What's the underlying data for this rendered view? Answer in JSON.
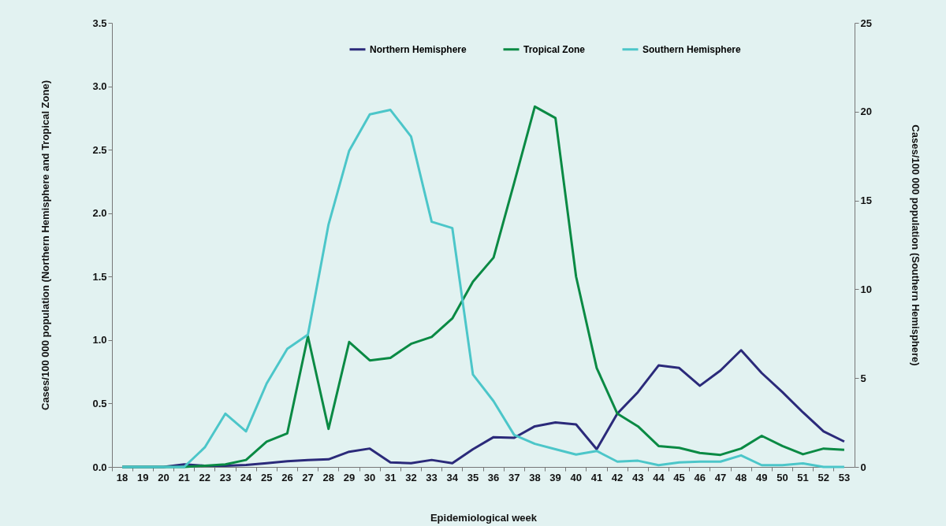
{
  "chart_data": {
    "type": "line",
    "xlabel": "Epidemiological week",
    "ylabel": "Cases/100 000 population (Northern Hemisphere and Tropical Zone)",
    "y2label": "Cases/100 000 population (Southern Hemisphere)",
    "categories": [
      "18",
      "19",
      "20",
      "21",
      "22",
      "23",
      "24",
      "25",
      "26",
      "27",
      "28",
      "29",
      "30",
      "31",
      "32",
      "33",
      "34",
      "35",
      "36",
      "37",
      "38",
      "39",
      "40",
      "41",
      "42",
      "43",
      "44",
      "45",
      "46",
      "47",
      "48",
      "49",
      "50",
      "51",
      "52",
      "53"
    ],
    "series": [
      {
        "name": "Northern Hemisphere",
        "color": "#2b2a7a",
        "values": [
          0,
          0,
          0,
          0.02,
          0.01,
          0.01,
          0.015,
          0.03,
          0.045,
          0.055,
          0.06,
          0.12,
          0.145,
          0.035,
          0.03,
          0.055,
          0.03,
          0.14,
          0.235,
          0.23,
          0.32,
          0.35,
          0.335,
          0.14,
          0.42,
          0.59,
          0.8,
          0.78,
          0.64,
          0.76,
          0.92,
          0.74,
          0.59,
          0.43,
          0.28,
          0.2
        ]
      },
      {
        "name": "Tropical Zone",
        "color": "#0a8a44",
        "values": [
          0,
          0,
          0,
          0,
          0.01,
          0.02,
          0.055,
          0.2,
          0.265,
          1.03,
          0.3,
          0.985,
          0.84,
          0.86,
          0.97,
          1.025,
          1.17,
          1.46,
          1.65,
          2.24,
          2.84,
          2.75,
          1.5,
          0.78,
          0.42,
          0.32,
          0.165,
          0.15,
          0.11,
          0.095,
          0.145,
          0.245,
          0.165,
          0.1,
          0.145,
          0.135
        ]
      },
      {
        "name": "Southern Hemisphere",
        "color": "#4cc6c9",
        "axis": "y2",
        "values": [
          0,
          0,
          0,
          0,
          1.1,
          3.0,
          2.0,
          4.7,
          6.65,
          7.45,
          13.65,
          17.8,
          19.85,
          20.1,
          18.6,
          13.8,
          13.45,
          5.2,
          3.7,
          1.8,
          1.3,
          1.0,
          0.7,
          0.9,
          0.3,
          0.35,
          0.1,
          0.25,
          0.3,
          0.3,
          0.65,
          0.1,
          0.1,
          0.2,
          0,
          0
        ]
      }
    ],
    "ylim": [
      0,
      3.5
    ],
    "yticks": [
      {
        "value": 0,
        "label": "0.0"
      },
      {
        "value": 0.5,
        "label": "0.5"
      },
      {
        "value": 1,
        "label": "1.0"
      },
      {
        "value": 1.5,
        "label": "1.5"
      },
      {
        "value": 2,
        "label": "2.0"
      },
      {
        "value": 2.5,
        "label": "2.5"
      },
      {
        "value": 3,
        "label": "3.0"
      },
      {
        "value": 3.5,
        "label": "3.5"
      }
    ],
    "y2lim": [
      0,
      25
    ],
    "y2ticks": [
      0,
      5,
      10,
      15,
      20,
      25
    ],
    "legend": "top",
    "grid": false
  }
}
